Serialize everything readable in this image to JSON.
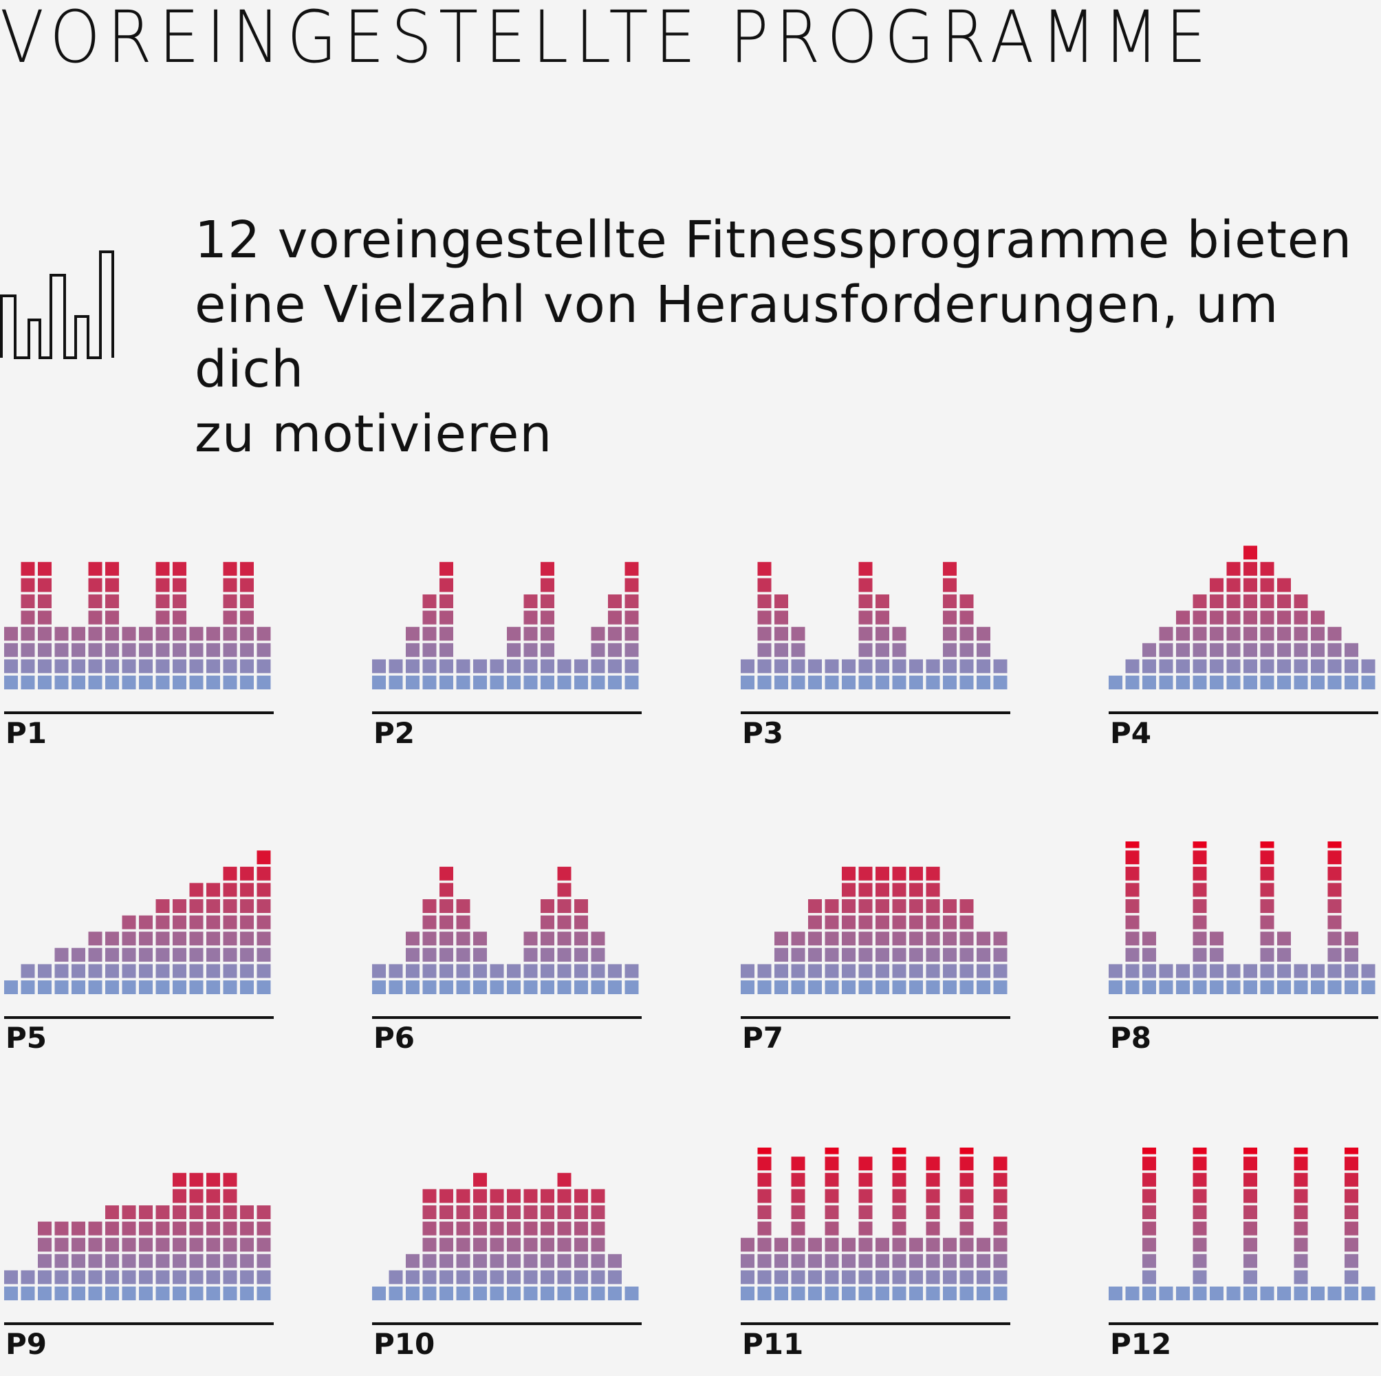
{
  "header": {
    "title": "VOREINGESTELLTE PROGRAMME",
    "intro_lines": [
      "12 voreingestellte Fitnessprogramme bieten",
      "eine Vielzahl von Herausforderungen, um dich",
      "zu motivieren"
    ],
    "icon": "bar-profile-icon"
  },
  "colors": {
    "low": "#8098cc",
    "high": "#e6001e",
    "baseline": "#111111",
    "background": "#f4f4f4"
  },
  "chart_data": [
    {
      "type": "bar",
      "label": "P1",
      "columns": 16,
      "values": [
        4,
        8,
        8,
        4,
        4,
        8,
        8,
        4,
        4,
        8,
        8,
        4,
        4,
        8,
        8,
        4
      ]
    },
    {
      "type": "bar",
      "label": "P2",
      "columns": 16,
      "values": [
        2,
        2,
        4,
        6,
        8,
        2,
        2,
        2,
        4,
        6,
        8,
        2,
        2,
        4,
        6,
        8
      ]
    },
    {
      "type": "bar",
      "label": "P3",
      "columns": 16,
      "values": [
        2,
        8,
        6,
        4,
        2,
        2,
        2,
        8,
        6,
        4,
        2,
        2,
        8,
        6,
        4,
        2
      ]
    },
    {
      "type": "bar",
      "label": "P4",
      "columns": 16,
      "values": [
        1,
        2,
        3,
        4,
        5,
        6,
        7,
        8,
        9,
        8,
        7,
        6,
        5,
        4,
        3,
        2
      ]
    },
    {
      "type": "bar",
      "label": "P5",
      "columns": 16,
      "values": [
        1,
        2,
        2,
        3,
        3,
        4,
        4,
        5,
        5,
        6,
        6,
        7,
        7,
        8,
        8,
        9
      ]
    },
    {
      "type": "bar",
      "label": "P6",
      "columns": 16,
      "values": [
        2,
        2,
        4,
        6,
        8,
        6,
        4,
        2,
        2,
        4,
        6,
        8,
        6,
        4,
        2,
        2
      ]
    },
    {
      "type": "bar",
      "label": "P7",
      "columns": 16,
      "values": [
        2,
        2,
        4,
        4,
        6,
        6,
        8,
        8,
        8,
        8,
        8,
        8,
        6,
        6,
        4,
        4
      ]
    },
    {
      "type": "bar",
      "label": "P8",
      "columns": 16,
      "values": [
        2,
        10,
        4,
        2,
        2,
        10,
        4,
        2,
        2,
        10,
        4,
        2,
        2,
        10,
        4,
        2
      ]
    },
    {
      "type": "bar",
      "label": "P9",
      "columns": 16,
      "values": [
        2,
        2,
        5,
        5,
        5,
        5,
        6,
        6,
        6,
        6,
        8,
        8,
        8,
        8,
        6,
        6
      ]
    },
    {
      "type": "bar",
      "label": "P10",
      "columns": 16,
      "values": [
        1,
        2,
        3,
        7,
        7,
        7,
        8,
        7,
        7,
        7,
        7,
        8,
        7,
        7,
        3,
        1
      ]
    },
    {
      "type": "bar",
      "label": "P11",
      "columns": 16,
      "values": [
        4,
        10,
        4,
        9,
        4,
        10,
        4,
        9,
        4,
        10,
        4,
        9,
        4,
        10,
        4,
        9
      ]
    },
    {
      "type": "bar",
      "label": "P12",
      "columns": 16,
      "values": [
        1,
        1,
        10,
        1,
        1,
        10,
        1,
        1,
        10,
        1,
        1,
        10,
        1,
        1,
        10,
        1
      ]
    }
  ]
}
